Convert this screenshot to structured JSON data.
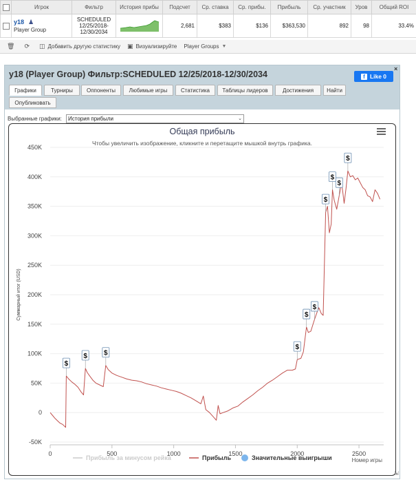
{
  "table": {
    "headers": [
      "Игрок",
      "Фильтр",
      "История прибы",
      "Подсчет",
      "Ср. ставка",
      "Ср. прибы.",
      "Прибыль",
      "Ср. участник",
      "Уров",
      "Общий ROI"
    ],
    "row": {
      "player": "y18",
      "player_type": "Player Group",
      "filter_lines": [
        "SCHEDULED",
        "12/25/2018-",
        "12/30/2034"
      ],
      "count": "2,681",
      "avg_stake": "$383",
      "avg_profit": "$136",
      "profit": "$363,530",
      "avg_entrants": "892",
      "level": "98",
      "roi": "33.4%"
    }
  },
  "toolbar": {
    "add_stat": "Добавить другую статистику",
    "visualize": "Визуализируйте",
    "player_groups": "Player Groups"
  },
  "panel": {
    "title": "y18 (Player Group) Фильтр:SCHEDULED 12/25/2018-12/30/2034",
    "like": "Like 0",
    "close": "×",
    "tabs": [
      "Графики",
      "Турниры",
      "Оппоненты",
      "Любимые игры",
      "Статистика",
      "Таблицы лидеров",
      "Достижения",
      "Найти",
      "Опубликовать"
    ],
    "select_label": "Выбранные графики:",
    "select_value": "История прибыли"
  },
  "chart_data": {
    "type": "line",
    "title": "Общая прибыль",
    "subtitle": "Чтобы увеличить изображение, кликните и перетащите мышкой внутрь графика.",
    "xlabel": "Номер игры",
    "ylabel": "Суммарный итог (USD)",
    "xlim": [
      0,
      2700
    ],
    "ylim": [
      -50000,
      450000
    ],
    "x_ticks": [
      "0",
      "500",
      "1000",
      "1500",
      "2000",
      "2500"
    ],
    "y_ticks": [
      "-50K",
      "0",
      "50K",
      "100K",
      "150K",
      "200K",
      "250K",
      "300K",
      "350K",
      "400K",
      "450K"
    ],
    "legend": [
      "Прибыль за минусом рейка",
      "Прибыль",
      "Значительные выигрыши"
    ],
    "colors": {
      "profit": "#c0504d",
      "rake": "#cccccc",
      "big_win": "#7cb5ec"
    },
    "series": [
      {
        "name": "Прибыль",
        "points": [
          [
            0,
            0
          ],
          [
            20,
            -5000
          ],
          [
            40,
            -10000
          ],
          [
            60,
            -14000
          ],
          [
            80,
            -18000
          ],
          [
            100,
            -20000
          ],
          [
            125,
            -25000
          ],
          [
            130,
            62000
          ],
          [
            150,
            57000
          ],
          [
            175,
            52000
          ],
          [
            200,
            48000
          ],
          [
            225,
            43000
          ],
          [
            250,
            35000
          ],
          [
            270,
            30000
          ],
          [
            285,
            75000
          ],
          [
            300,
            68000
          ],
          [
            320,
            62000
          ],
          [
            345,
            55000
          ],
          [
            370,
            50000
          ],
          [
            400,
            47000
          ],
          [
            430,
            44000
          ],
          [
            450,
            80000
          ],
          [
            470,
            73000
          ],
          [
            500,
            67000
          ],
          [
            540,
            63000
          ],
          [
            580,
            60000
          ],
          [
            620,
            57000
          ],
          [
            660,
            55000
          ],
          [
            700,
            54000
          ],
          [
            740,
            52000
          ],
          [
            780,
            49000
          ],
          [
            820,
            47000
          ],
          [
            860,
            45000
          ],
          [
            900,
            42000
          ],
          [
            940,
            40000
          ],
          [
            980,
            38000
          ],
          [
            1020,
            36000
          ],
          [
            1060,
            33000
          ],
          [
            1100,
            29000
          ],
          [
            1140,
            25000
          ],
          [
            1180,
            20000
          ],
          [
            1220,
            15000
          ],
          [
            1240,
            28000
          ],
          [
            1260,
            5000
          ],
          [
            1290,
            0
          ],
          [
            1320,
            -7000
          ],
          [
            1345,
            -13000
          ],
          [
            1360,
            12000
          ],
          [
            1375,
            -2000
          ],
          [
            1400,
            0
          ],
          [
            1440,
            3000
          ],
          [
            1480,
            8000
          ],
          [
            1520,
            11000
          ],
          [
            1560,
            18000
          ],
          [
            1600,
            24000
          ],
          [
            1640,
            30000
          ],
          [
            1680,
            37000
          ],
          [
            1720,
            43000
          ],
          [
            1760,
            50000
          ],
          [
            1800,
            55000
          ],
          [
            1840,
            61000
          ],
          [
            1880,
            67000
          ],
          [
            1920,
            72000
          ],
          [
            1960,
            72000
          ],
          [
            1985,
            74000
          ],
          [
            2000,
            90000
          ],
          [
            2030,
            92000
          ],
          [
            2050,
            103000
          ],
          [
            2075,
            145000
          ],
          [
            2090,
            136000
          ],
          [
            2110,
            138000
          ],
          [
            2140,
            158000
          ],
          [
            2160,
            170000
          ],
          [
            2175,
            178000
          ],
          [
            2195,
            168000
          ],
          [
            2210,
            165000
          ],
          [
            2230,
            340000
          ],
          [
            2245,
            350000
          ],
          [
            2260,
            305000
          ],
          [
            2275,
            320000
          ],
          [
            2285,
            378000
          ],
          [
            2300,
            360000
          ],
          [
            2320,
            345000
          ],
          [
            2340,
            368000
          ],
          [
            2360,
            390000
          ],
          [
            2380,
            355000
          ],
          [
            2395,
            380000
          ],
          [
            2410,
            410000
          ],
          [
            2430,
            400000
          ],
          [
            2450,
            402000
          ],
          [
            2470,
            395000
          ],
          [
            2490,
            398000
          ],
          [
            2510,
            390000
          ],
          [
            2530,
            382000
          ],
          [
            2550,
            378000
          ],
          [
            2570,
            368000
          ],
          [
            2590,
            366000
          ],
          [
            2610,
            358000
          ],
          [
            2630,
            378000
          ],
          [
            2650,
            372000
          ],
          [
            2670,
            362000
          ]
        ]
      }
    ],
    "big_wins": [
      [
        130,
        62000
      ],
      [
        285,
        75000
      ],
      [
        450,
        80000
      ],
      [
        2000,
        90000
      ],
      [
        2075,
        145000
      ],
      [
        2140,
        158000
      ],
      [
        2230,
        340000
      ],
      [
        2285,
        378000
      ],
      [
        2340,
        368000
      ],
      [
        2410,
        410000
      ]
    ]
  }
}
